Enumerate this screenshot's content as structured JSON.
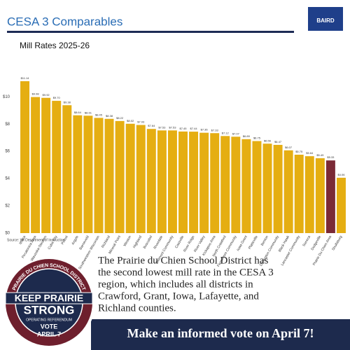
{
  "header": {
    "title": "CESA 3 Comparables",
    "logo": "BAIRD"
  },
  "chart_data": {
    "type": "bar",
    "title": "Mill Rates 2025-26",
    "categories": [
      "Ithaca",
      "Pecatonica Area",
      "Wauzeka-Steuben",
      "Cuba City",
      "Potosi",
      "Argyle",
      "Barneveld",
      "Southwestern Wisconsin",
      "Richland",
      "Mineral Point",
      "Weston",
      "Highland",
      "Boscobel",
      "Riverdale",
      "Belmont Community",
      "Cassville",
      "River Ridge",
      "River Valley",
      "Kickapoo Area",
      "North Crawford",
      "Fennimore Community",
      "Iowa Grant",
      "Platteville",
      "Benton",
      "Darlington Community",
      "Black Hawk",
      "Lancaster Community",
      "Seneca",
      "Dodgeville",
      "Prairie Du Chien Area",
      "Shullsburg"
    ],
    "values": [
      11.14,
      9.98,
      9.92,
      9.7,
      9.38,
      8.64,
      8.61,
      8.45,
      8.38,
      8.22,
      8.02,
      7.93,
      7.64,
      7.53,
      7.53,
      7.45,
      7.44,
      7.36,
      7.33,
      7.12,
      7.07,
      6.89,
      6.75,
      6.56,
      6.47,
      6.07,
      5.75,
      5.64,
      5.49,
      5.33,
      4.06
    ],
    "value_labels": [
      "$11.14",
      "$9.98",
      "$9.92",
      "$9.70",
      "$9.38",
      "$8.64",
      "$8.61",
      "$8.45",
      "$8.38",
      "$8.22",
      "$8.02",
      "$7.93",
      "$7.64",
      "$7.53",
      "$7.53",
      "$7.45",
      "$7.44",
      "$7.36",
      "$7.33",
      "$7.12",
      "$7.07",
      "$6.89",
      "$6.75",
      "$6.56",
      "$6.47",
      "$6.07",
      "$5.75",
      "$5.64",
      "$5.49",
      "$5.33",
      "$4.06"
    ],
    "colors": [
      "#e5ae12",
      "#e5ae12",
      "#e5ae12",
      "#e5ae12",
      "#e5ae12",
      "#e5ae12",
      "#e5ae12",
      "#e5ae12",
      "#e5ae12",
      "#e5ae12",
      "#e5ae12",
      "#e5ae12",
      "#e5ae12",
      "#e5ae12",
      "#e5ae12",
      "#e5ae12",
      "#e5ae12",
      "#e5ae12",
      "#e5ae12",
      "#e5ae12",
      "#e5ae12",
      "#e5ae12",
      "#e5ae12",
      "#e5ae12",
      "#e5ae12",
      "#e5ae12",
      "#e5ae12",
      "#e5ae12",
      "#e5ae12",
      "#7b2a36",
      "#e5ae12"
    ],
    "ylim": [
      0,
      11.5
    ],
    "yticks": [
      {
        "value": 0,
        "label": "$0"
      },
      {
        "value": 2,
        "label": "$2"
      },
      {
        "value": 4,
        "label": "$4"
      },
      {
        "value": 6,
        "label": "$6"
      },
      {
        "value": 8,
        "label": "$8"
      },
      {
        "value": 10,
        "label": "$10"
      }
    ],
    "source": "Source: WI Department of Instruction"
  },
  "message": {
    "lines": [
      "The Prairie du Chien School District has",
      "the second lowest mill rate in the CESA 3",
      "region, which includes all districts in",
      "Crawford, Grant, Iowa, Lafayette, and",
      "Richland counties."
    ]
  },
  "footer": {
    "text": "Make an informed vote on April 7!"
  },
  "badge": {
    "ring_top": "PRAIRIE DU CHIEN SCHOOL DISTRICT",
    "line1": "KEEP PRAIRIE",
    "line2": "STRONG",
    "banner": "OPERATING REFERENDUM",
    "vote": "VOTE",
    "date": "APRIL 7"
  }
}
